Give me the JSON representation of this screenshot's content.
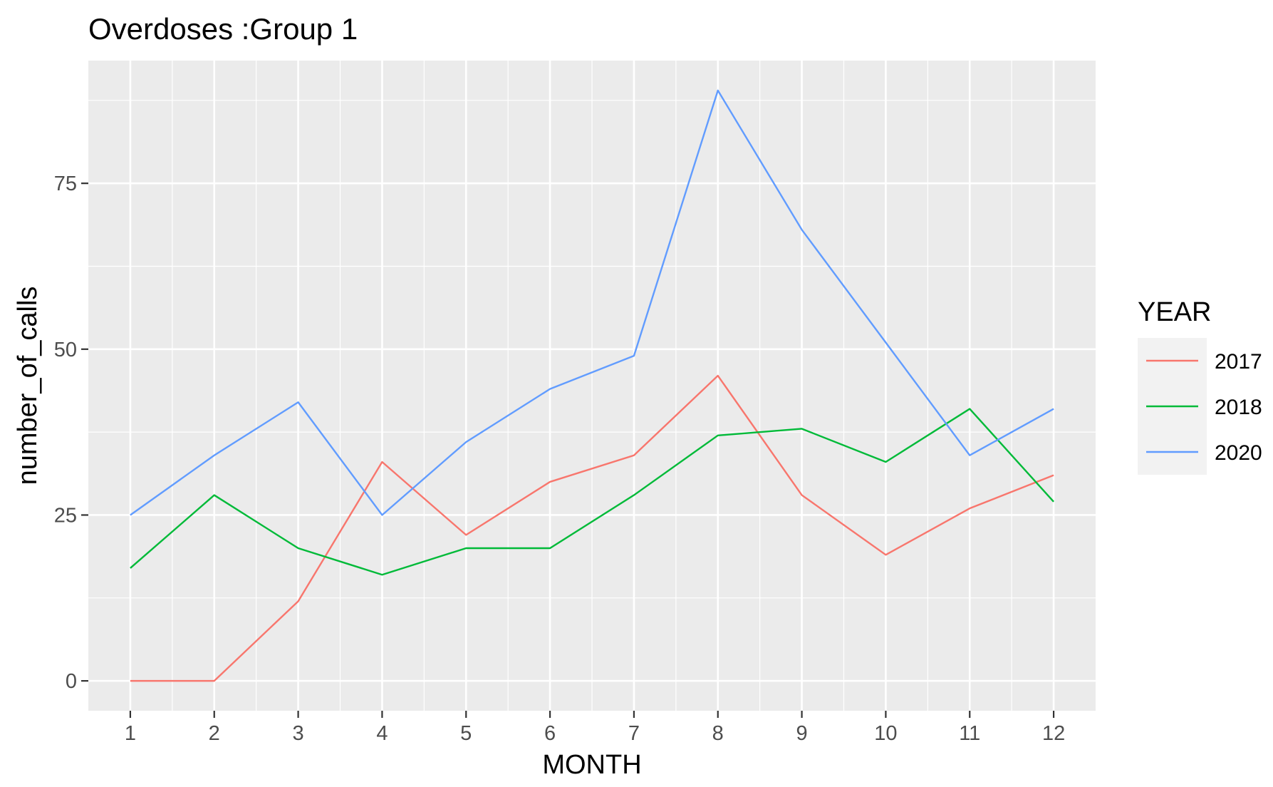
{
  "chart_data": {
    "type": "line",
    "title": "Overdoses :Group 1",
    "xlabel": "MONTH",
    "ylabel": "number_of_calls",
    "x": [
      1,
      2,
      3,
      4,
      5,
      6,
      7,
      8,
      9,
      10,
      11,
      12
    ],
    "x_ticks": [
      "1",
      "2",
      "3",
      "4",
      "5",
      "6",
      "7",
      "8",
      "9",
      "10",
      "11",
      "12"
    ],
    "y_ticks": [
      "0",
      "25",
      "50",
      "75"
    ],
    "xlim": [
      0.5,
      12.5
    ],
    "ylim": [
      -4.5,
      93.5
    ],
    "grid": true,
    "panel_background": "#EBEBEB",
    "grid_color": "#FFFFFF",
    "legend": {
      "title": "YEAR",
      "placement": "right"
    },
    "series": [
      {
        "name": "2017",
        "color": "#F8766D",
        "values": [
          0,
          0,
          12,
          33,
          22,
          30,
          34,
          46,
          28,
          19,
          26,
          31
        ]
      },
      {
        "name": "2018",
        "color": "#00BA38",
        "values": [
          17,
          28,
          20,
          16,
          20,
          20,
          28,
          37,
          38,
          33,
          41,
          27
        ]
      },
      {
        "name": "2020",
        "color": "#619CFF",
        "values": [
          25,
          34,
          42,
          25,
          36,
          44,
          49,
          89,
          68,
          51,
          34,
          41
        ]
      }
    ]
  }
}
